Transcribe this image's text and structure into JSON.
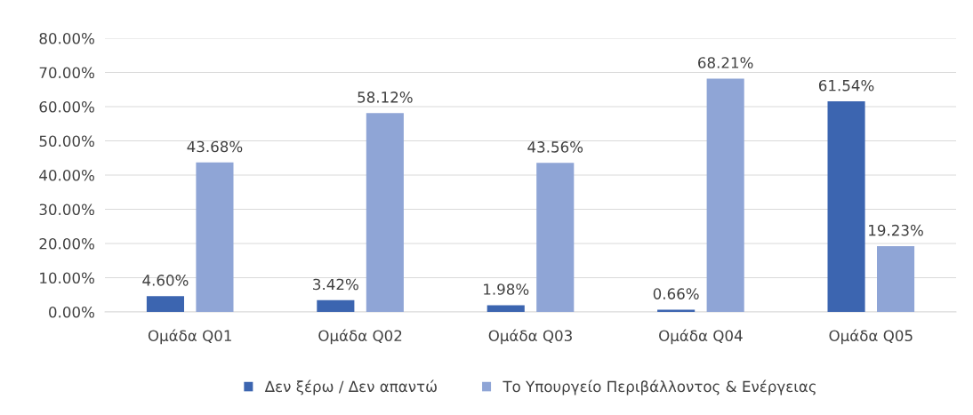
{
  "chart_data": {
    "type": "bar",
    "categories": [
      "Ομάδα Q01",
      "Ομάδα Q02",
      "Ομάδα Q03",
      "Ομάδα Q04",
      "Ομάδα Q05"
    ],
    "series": [
      {
        "name": "Δεν ξέρω / Δεν απαντώ",
        "color": "#3c65b0",
        "values": [
          4.6,
          3.42,
          1.98,
          0.66,
          61.54
        ],
        "value_labels": [
          "4.60%",
          "3.42%",
          "1.98%",
          "0.66%",
          "61.54%"
        ]
      },
      {
        "name": "Το Υπουργείο Περιβάλλοντος & Ενέργειας",
        "color": "#8fa5d6",
        "values": [
          43.68,
          58.12,
          43.56,
          68.21,
          19.23
        ],
        "value_labels": [
          "43.68%",
          "58.12%",
          "43.56%",
          "68.21%",
          "19.23%"
        ]
      }
    ],
    "ylim": [
      0,
      80
    ],
    "yticks": [
      {
        "value": 0,
        "label": "0.00%"
      },
      {
        "value": 10,
        "label": "10.00%"
      },
      {
        "value": 20,
        "label": "20.00%"
      },
      {
        "value": 30,
        "label": "30.00%"
      },
      {
        "value": 40,
        "label": "40.00%"
      },
      {
        "value": 50,
        "label": "50.00%"
      },
      {
        "value": 60,
        "label": "60.00%"
      },
      {
        "value": 70,
        "label": "70.00%"
      },
      {
        "value": 80,
        "label": "80.00%"
      }
    ],
    "grid": "y",
    "legend": "bottom"
  }
}
